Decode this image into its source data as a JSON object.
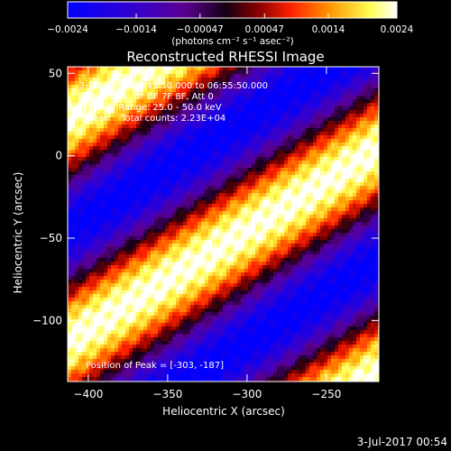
{
  "chart_data": {
    "type": "heatmap",
    "title": "Reconstructed RHESSI Image",
    "xlabel": "Heliocentric X (arcsec)",
    "ylabel": "Heliocentric Y (arcsec)",
    "xlim": [
      -413,
      -217
    ],
    "ylim": [
      -137,
      54
    ],
    "xticks": [
      -400,
      -350,
      -300,
      -250
    ],
    "yticks": [
      50,
      0,
      -50,
      -100
    ],
    "colorbar": {
      "ticks": [
        -0.0024,
        -0.0014,
        -0.00047,
        0.00047,
        0.0014,
        0.0024
      ],
      "tick_labels": [
        "−0.0024",
        "−0.0014",
        "−0.00047",
        "0.00047",
        "0.0014",
        "0.0024"
      ],
      "range": [
        -0.0024,
        0.0024
      ],
      "unit_label": "(photons cm⁻² s⁻¹ asec⁻²)",
      "colormap": [
        "#0000ff",
        "#3a00c8",
        "#5a008f",
        "#140014",
        "#8a0000",
        "#ff2200",
        "#ff9a00",
        "#ffff55",
        "#ffffff"
      ]
    },
    "annotations": [
      "3-Jan-2015 06:45:50.000 to 06:55:50.000",
      "Detectors: 3F 6F 7F 8F, Att 0",
      "Energy Range: 25.0 - 50.0 keV",
      "Clean    Total counts: 2.23E+04"
    ],
    "peak_label": "Position of Peak = [-303, -187]",
    "timestamp": "3-Jul-2017 00:54"
  }
}
